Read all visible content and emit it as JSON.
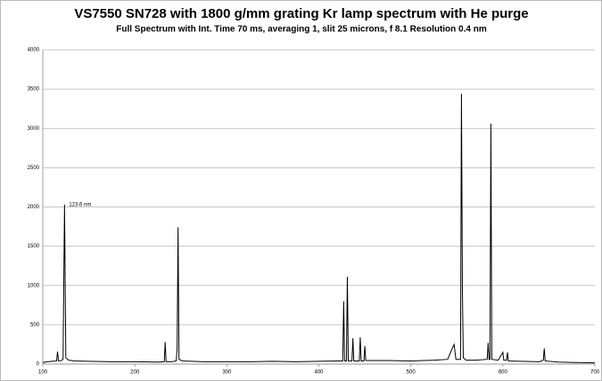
{
  "chart_data": {
    "type": "line",
    "title": "VS7550 SN728 with 1800 g/mm grating Kr lamp spectrum with He purge",
    "subtitle": "Full Spectrum with Int. Time 70 ms, averaging 1, slit 25 microns, f 8.1  Resolution 0.4 nm",
    "annotations": [
      {
        "text": "123.6 nm",
        "x": 123.6,
        "y": 2030
      }
    ],
    "x": [
      100,
      105,
      110,
      115,
      116,
      117,
      120,
      122,
      123.6,
      125,
      128,
      135,
      150,
      175,
      200,
      225,
      232,
      233,
      234,
      240,
      245,
      246,
      247,
      248,
      252,
      275,
      300,
      325,
      350,
      375,
      400,
      420,
      426,
      427,
      428,
      430,
      431,
      432,
      436,
      437,
      438,
      444,
      445,
      446,
      449,
      450,
      451,
      475,
      500,
      525,
      540,
      545,
      547,
      549,
      554,
      555,
      556,
      557,
      560,
      570,
      583,
      584,
      585,
      586,
      587,
      588,
      595,
      600,
      601,
      604,
      605,
      606,
      620,
      640,
      644,
      645,
      646,
      660,
      680,
      700
    ],
    "series": [
      {
        "color": "#000000",
        "values": [
          20,
          30,
          35,
          40,
          160,
          40,
          45,
          60,
          2030,
          80,
          50,
          40,
          35,
          30,
          30,
          25,
          30,
          280,
          30,
          30,
          40,
          200,
          1740,
          60,
          40,
          30,
          30,
          30,
          35,
          30,
          35,
          40,
          40,
          800,
          40,
          40,
          1110,
          40,
          40,
          330,
          40,
          40,
          340,
          40,
          40,
          230,
          45,
          45,
          40,
          50,
          60,
          200,
          250,
          60,
          60,
          3440,
          1000,
          80,
          50,
          50,
          60,
          270,
          60,
          60,
          3060,
          60,
          50,
          150,
          50,
          50,
          150,
          40,
          35,
          30,
          50,
          200,
          40,
          25,
          20,
          15
        ]
      }
    ],
    "xlim": [
      100,
      700
    ],
    "xticks": [
      100,
      200,
      300,
      400,
      500,
      600,
      700
    ],
    "ylim": [
      0,
      4000
    ],
    "yticks": [
      0,
      500,
      1000,
      1500,
      2000,
      2500,
      3000,
      3500,
      4000
    ],
    "grid": true
  }
}
